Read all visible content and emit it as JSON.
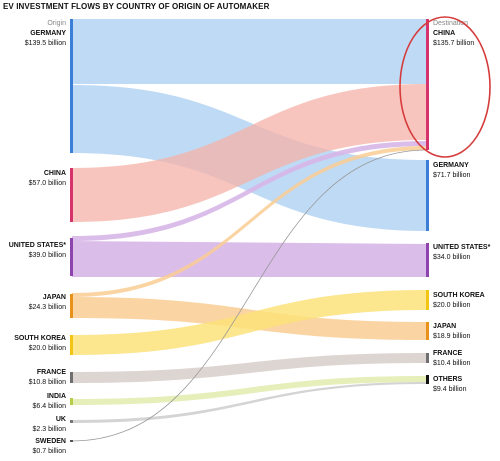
{
  "title": "EV INVESTMENT FLOWS BY COUNTRY OF ORIGIN OF AUTOMAKER",
  "origin_header": "Origin",
  "destination_header": "Destination",
  "colors": {
    "germany": "#4a90d9",
    "china": "#d6336c",
    "united_states": "#8e44ad",
    "japan": "#f39c12",
    "south_korea": "#f1c40f",
    "france": "#7f7f7f",
    "india": "#c7d86a",
    "uk": "#888888",
    "sweden": "#666666",
    "others": "#000000",
    "highlight": "#d63b3b"
  },
  "origins": [
    {
      "name": "GERMANY",
      "value": "$139.5 billion",
      "color": "#3a7fd5"
    },
    {
      "name": "CHINA",
      "value": "$57.0 billion",
      "color": "#d6336c"
    },
    {
      "name": "UNITED STATES*",
      "value": "$39.0 billion",
      "color": "#8e44ad"
    },
    {
      "name": "JAPAN",
      "value": "$24.3 billion",
      "color": "#e8921b"
    },
    {
      "name": "SOUTH KOREA",
      "value": "$20.0 billion",
      "color": "#f2c414"
    },
    {
      "name": "FRANCE",
      "value": "$10.8 billion",
      "color": "#6f6f6f"
    },
    {
      "name": "INDIA",
      "value": "$6.4 billion",
      "color": "#b6cf4a"
    },
    {
      "name": "UK",
      "value": "$2.3 billion",
      "color": "#777777"
    },
    {
      "name": "SWEDEN",
      "value": "$0.7 billion",
      "color": "#555555"
    }
  ],
  "destinations": [
    {
      "name": "CHINA",
      "value": "$135.7 billion",
      "color": "#d6336c"
    },
    {
      "name": "GERMANY",
      "value": "$71.7 billion",
      "color": "#3a7fd5"
    },
    {
      "name": "UNITED STATES*",
      "value": "$34.0 billion",
      "color": "#8e44ad"
    },
    {
      "name": "SOUTH KOREA",
      "value": "$20.0 billion",
      "color": "#f2c414"
    },
    {
      "name": "JAPAN",
      "value": "$18.9 billion",
      "color": "#e8921b"
    },
    {
      "name": "FRANCE",
      "value": "$10.4 billion",
      "color": "#6f6f6f"
    },
    {
      "name": "OTHERS",
      "value": "$9.4 billion",
      "color": "#111111"
    }
  ]
}
